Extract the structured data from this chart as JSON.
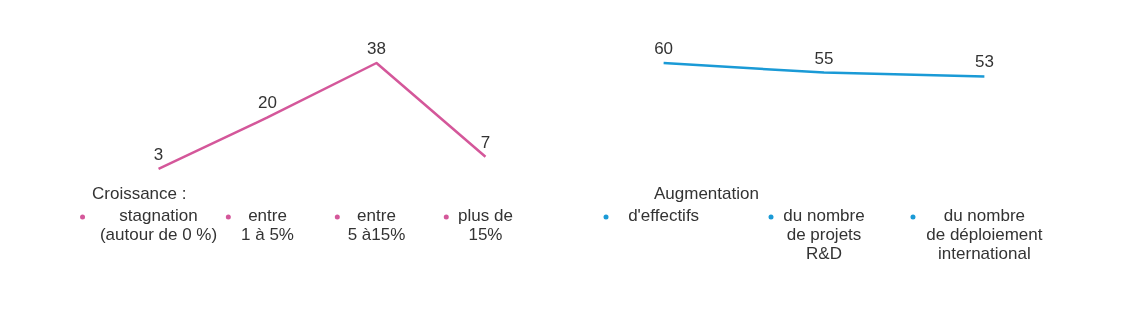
{
  "chart_data": [
    {
      "type": "line",
      "xlabel": "Croissance :",
      "categories": [
        "stagnation\n(autour de 0 %)",
        "entre\n 1 à 5%",
        "entre\n 5 à15%",
        "plus de\n15%"
      ],
      "series": [
        {
          "color": "#d4579a",
          "values": [
            3,
            20,
            38,
            7
          ]
        }
      ],
      "data_labels": true,
      "tick_labels": "x"
    },
    {
      "type": "line",
      "xlabel": "Augmentation",
      "categories": [
        "d'effectifs",
        "du nombre\nde projets\nR&D",
        "du nombre\nde déploiement\ninternational"
      ],
      "series": [
        {
          "color": "#1a9ad6",
          "values": [
            60,
            55,
            53
          ]
        }
      ],
      "data_labels": true,
      "tick_labels": "x"
    }
  ]
}
